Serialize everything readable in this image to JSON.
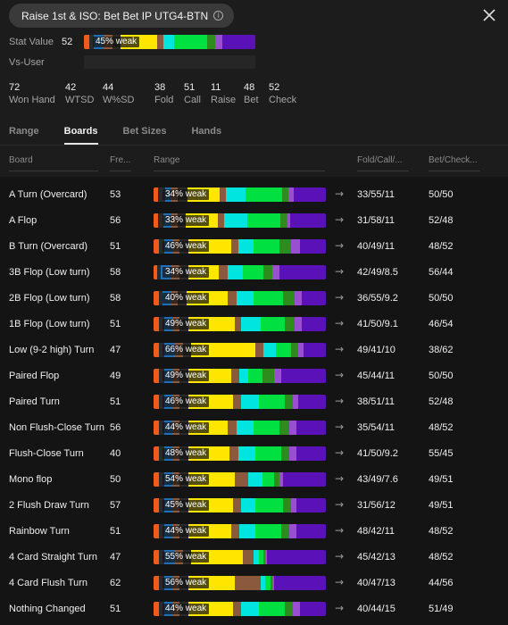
{
  "header": {
    "title": "Raise 1st & ISO: Bet Bet IP UTG4-BTN",
    "info_icon": "i"
  },
  "stats": {
    "stat_value_label": "Stat Value",
    "stat_value": "52",
    "stat_bar_label": "45% weak",
    "vs_user_label": "Vs-User"
  },
  "summary": [
    {
      "value": "72",
      "label": "Won Hand"
    },
    {
      "value": "42",
      "label": "WTSD"
    },
    {
      "value": "44",
      "label": "W%SD"
    },
    {
      "value": "38",
      "label": "Fold"
    },
    {
      "value": "51",
      "label": "Call"
    },
    {
      "value": "11",
      "label": "Raise"
    },
    {
      "value": "48",
      "label": "Bet"
    },
    {
      "value": "52",
      "label": "Check"
    }
  ],
  "tabs": [
    {
      "label": "Range",
      "active": false
    },
    {
      "label": "Boards",
      "active": true
    },
    {
      "label": "Bet Sizes",
      "active": false
    },
    {
      "label": "Hands",
      "active": false
    }
  ],
  "columns": {
    "board": "Board",
    "freq": "Fre...",
    "range": "Range",
    "fcr": "Fold/Call/...",
    "bc": "Bet/Check..."
  },
  "colors": {
    "orange": "#f05a1a",
    "dark": "#2a2a2a",
    "blue": "#1e6fb8",
    "brown": "#8b5a3c",
    "yellow": "#ffe600",
    "aqua": "#00e5e0",
    "green": "#00e040",
    "dkgreen": "#2e8b1e",
    "violet": "#9a4fd0",
    "purple": "#5a12b8"
  },
  "arrow_glyph": "→",
  "rows": [
    {
      "name": "A Turn (Overcard)",
      "freq": "53",
      "bar_label": "34% weak",
      "fcr": "33/55/11",
      "bc": "50/50",
      "segs": [
        3,
        4,
        4,
        4,
        6,
        20,
        4,
        12,
        23,
        7,
        20
      ]
    },
    {
      "name": "A Flop",
      "freq": "56",
      "bar_label": "33% weak",
      "fcr": "31/58/11",
      "bc": "52/48",
      "segs": [
        3,
        3,
        5,
        4,
        5,
        20,
        4,
        14,
        21,
        6,
        22
      ]
    },
    {
      "name": "B Turn (Overcard)",
      "freq": "51",
      "bar_label": "46% weak",
      "fcr": "40/49/11",
      "bc": "48/52",
      "segs": [
        3,
        3,
        5,
        4,
        5,
        25,
        4,
        9,
        15,
        12,
        15
      ]
    },
    {
      "name": "3B Flop (Low turn)",
      "freq": "58",
      "bar_label": "34% weak",
      "fcr": "42/49/8.5",
      "bc": "56/44",
      "segs": [
        2,
        2,
        6,
        5,
        5,
        18,
        5,
        9,
        12,
        9,
        27
      ]
    },
    {
      "name": "2B Flop (Low turn)",
      "freq": "58",
      "bar_label": "40% weak",
      "fcr": "36/55/9.2",
      "bc": "50/50",
      "segs": [
        3,
        2,
        5,
        4,
        5,
        24,
        5,
        10,
        17,
        11,
        14
      ]
    },
    {
      "name": "1B Flop (Low turn)",
      "freq": "51",
      "bar_label": "49% weak",
      "fcr": "41/50/9.1",
      "bc": "46/54",
      "segs": [
        3,
        3,
        5,
        4,
        5,
        27,
        4,
        11,
        14,
        10,
        14
      ]
    },
    {
      "name": "Low (9-2 high) Turn",
      "freq": "47",
      "bar_label": "66% weak",
      "fcr": "49/41/10",
      "bc": "38/62",
      "segs": [
        3,
        3,
        6,
        5,
        5,
        37,
        5,
        7,
        9,
        7,
        13
      ]
    },
    {
      "name": "Paired Flop",
      "freq": "49",
      "bar_label": "49% weak",
      "fcr": "45/44/11",
      "bc": "50/50",
      "segs": [
        3,
        3,
        5,
        4,
        5,
        25,
        5,
        5,
        8,
        11,
        26
      ]
    },
    {
      "name": "Paired Turn",
      "freq": "51",
      "bar_label": "46% weak",
      "fcr": "38/51/11",
      "bc": "52/48",
      "segs": [
        3,
        3,
        5,
        4,
        5,
        26,
        5,
        10,
        15,
        8,
        16
      ]
    },
    {
      "name": "Non Flush-Close Turn",
      "freq": "56",
      "bar_label": "44% weak",
      "fcr": "35/54/11",
      "bc": "48/52",
      "segs": [
        3,
        3,
        5,
        4,
        5,
        23,
        5,
        10,
        15,
        10,
        17
      ]
    },
    {
      "name": "Flush-Close Turn",
      "freq": "40",
      "bar_label": "48% weak",
      "fcr": "41/50/9.2",
      "bc": "55/45",
      "segs": [
        3,
        3,
        5,
        4,
        5,
        24,
        5,
        10,
        15,
        9,
        17
      ]
    },
    {
      "name": "Mono flop",
      "freq": "50",
      "bar_label": "54% weak",
      "fcr": "43/49/7.6",
      "bc": "49/51",
      "segs": [
        3,
        3,
        5,
        4,
        5,
        27,
        8,
        8,
        7,
        5,
        25
      ]
    },
    {
      "name": "2 Flush Draw Turn",
      "freq": "57",
      "bar_label": "45% weak",
      "fcr": "31/56/12",
      "bc": "49/51",
      "segs": [
        3,
        3,
        5,
        4,
        5,
        26,
        5,
        8,
        16,
        8,
        17
      ]
    },
    {
      "name": "Rainbow Turn",
      "freq": "51",
      "bar_label": "44% weak",
      "fcr": "48/42/11",
      "bc": "48/52",
      "segs": [
        3,
        3,
        5,
        4,
        5,
        25,
        5,
        9,
        15,
        9,
        17
      ]
    },
    {
      "name": "4 Card Straight Turn",
      "freq": "47",
      "bar_label": "55% weak",
      "fcr": "45/42/13",
      "bc": "48/52",
      "segs": [
        3,
        3,
        6,
        5,
        5,
        30,
        6,
        3,
        3,
        2,
        34
      ]
    },
    {
      "name": "4 Card Flush Turn",
      "freq": "62",
      "bar_label": "56% weak",
      "fcr": "40/47/13",
      "bc": "44/56",
      "segs": [
        3,
        3,
        5,
        4,
        5,
        27,
        15,
        3,
        3,
        2,
        30
      ]
    },
    {
      "name": "Nothing Changed",
      "freq": "51",
      "bar_label": "44% weak",
      "fcr": "40/44/15",
      "bc": "51/49",
      "segs": [
        3,
        3,
        5,
        4,
        5,
        26,
        5,
        10,
        15,
        9,
        15
      ]
    }
  ]
}
